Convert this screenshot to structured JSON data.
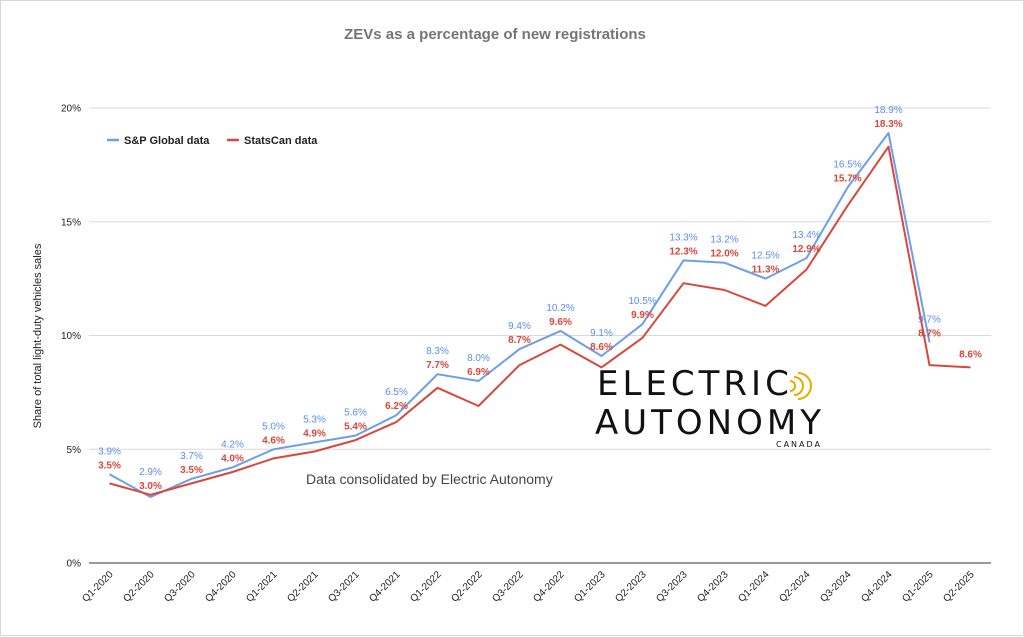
{
  "chart_data": {
    "type": "line",
    "title": "ZEVs as a percentage of new registrations",
    "ylabel": "Share of total light-duty vehicles sales",
    "ylim": [
      0,
      20
    ],
    "yticks": [
      "0%",
      "5%",
      "10%",
      "15%",
      "20%"
    ],
    "grid": "horizontal",
    "legend_position": "top-left",
    "categories": [
      "Q1-2020",
      "Q2-2020",
      "Q3-2020",
      "Q4-2020",
      "Q1-2021",
      "Q2-2021",
      "Q3-2021",
      "Q4-2021",
      "Q1-2022",
      "Q2-2022",
      "Q3-2022",
      "Q4-2022",
      "Q1-2023",
      "Q2-2023",
      "Q3-2023",
      "Q4-2023",
      "Q1-2024",
      "Q2-2024",
      "Q3-2024",
      "Q4-2024",
      "Q1-2025",
      "Q2-2025"
    ],
    "series": [
      {
        "name": "S&P Global data",
        "color": "#6d9eeb",
        "values": [
          3.9,
          2.9,
          3.7,
          4.2,
          5.0,
          5.3,
          5.6,
          6.5,
          8.3,
          8.0,
          9.4,
          10.2,
          9.1,
          10.5,
          13.3,
          13.2,
          12.5,
          13.4,
          16.5,
          18.9,
          9.7,
          null
        ],
        "labels": [
          "3.9%",
          "2.9%",
          "3.7%",
          "4.2%",
          "5.0%",
          "5.3%",
          "5.6%",
          "6.5%",
          "8.3%",
          "8.0%",
          "9.4%",
          "10.2%",
          "9.1%",
          "10.5%",
          "13.3%",
          "13.2%",
          "12.5%",
          "13.4%",
          "16.5%",
          "18.9%",
          "9.7%",
          ""
        ]
      },
      {
        "name": "StatsCan data",
        "color": "#d9473a",
        "values": [
          3.5,
          3.0,
          3.5,
          4.0,
          4.6,
          4.9,
          5.4,
          6.2,
          7.7,
          6.9,
          8.7,
          9.6,
          8.6,
          9.9,
          12.3,
          12.0,
          11.3,
          12.9,
          15.7,
          18.3,
          8.7,
          8.6
        ],
        "labels": [
          "3.5%",
          "3.0%",
          "3.5%",
          "4.0%",
          "4.6%",
          "4.9%",
          "5.4%",
          "6.2%",
          "7.7%",
          "6.9%",
          "8.7%",
          "9.6%",
          "8.6%",
          "9.9%",
          "12.3%",
          "12.0%",
          "11.3%",
          "12.9%",
          "15.7%",
          "18.3%",
          "8.7%",
          "8.6%"
        ]
      }
    ],
    "annotation": "Data consolidated by Electric Autonomy"
  },
  "logo": {
    "line1": "ELECTRIC",
    "line2": "AUTONOMY",
    "line3": "CANADA"
  }
}
